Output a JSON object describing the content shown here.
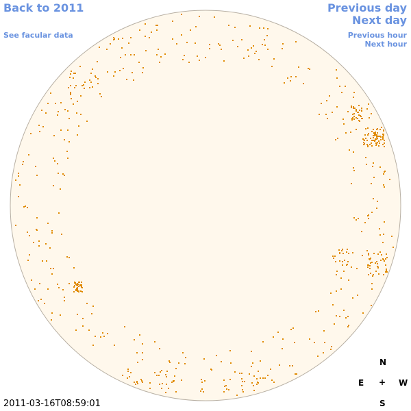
{
  "links_left": {
    "back": "Back to 2011",
    "facular": "See facular data"
  },
  "links_right": {
    "previous_day": "Previous day",
    "next_day": "Next day",
    "previous_hour": "Previous hour",
    "next_hour": "Next hour"
  },
  "timestamp": "2011-03-16T08:59:01",
  "compass": {
    "north": "N",
    "east": "E",
    "center": "+",
    "west": "W",
    "south": "S"
  }
}
